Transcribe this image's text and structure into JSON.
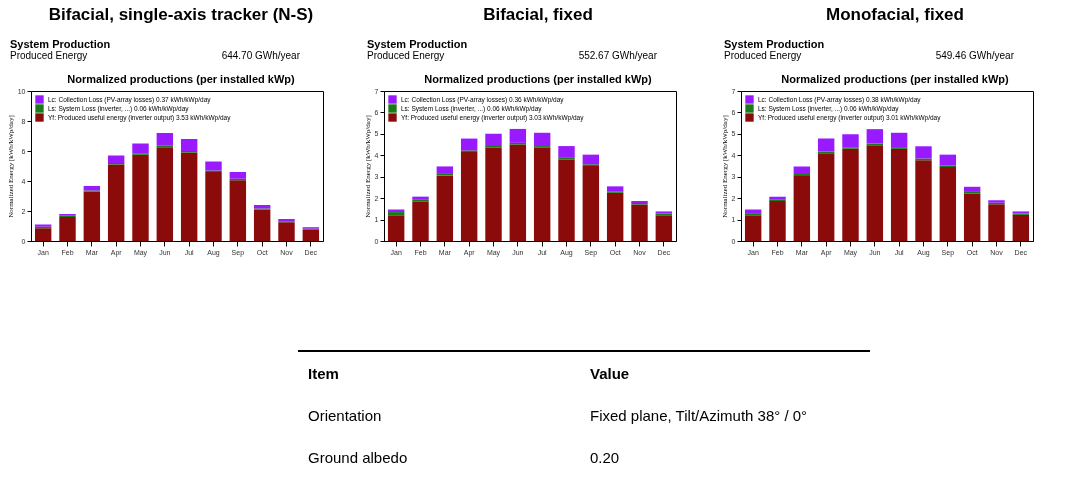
{
  "chart_data": [
    {
      "type": "bar",
      "title": "Bifacial, single-axis tracker (N-S)",
      "subtitle": "Normalized productions (per installed kWp)",
      "annotations": [
        "System Production",
        "Produced Energy",
        "644.70 GWh/year"
      ],
      "ylabel": "Normalized Energy [kWh/kWp/day]",
      "categories": [
        "Jan",
        "Feb",
        "Mar",
        "Apr",
        "May",
        "Jun",
        "Jul",
        "Aug",
        "Sep",
        "Oct",
        "Nov",
        "Dec"
      ],
      "stacked": true,
      "legend": "top left",
      "ylim": [
        0,
        10
      ],
      "yticks": [
        0,
        2,
        4,
        6,
        8,
        10
      ],
      "series": [
        {
          "name": "Yf: Produced useful energy  (inverter output)  3.53 kWh/kWp/day",
          "color": "#8b0a0a",
          "values": [
            0.85,
            1.6,
            3.3,
            5.1,
            5.75,
            6.25,
            5.9,
            4.6,
            4.05,
            2.1,
            1.25,
            0.75
          ]
        },
        {
          "name": "Ls: System Loss  (inverter, ...)  0.06 kWh/kWp/day",
          "color": "#1a7a1a",
          "values": [
            0.1,
            0.08,
            0.07,
            0.1,
            0.1,
            0.1,
            0.1,
            0.1,
            0.1,
            0.07,
            0.07,
            0.07
          ]
        },
        {
          "name": "Lc: Collection Loss (PV-array losses)  0.37 kWh/kWp/day",
          "color": "#9a1aff",
          "values": [
            0.15,
            0.12,
            0.3,
            0.5,
            0.65,
            0.85,
            0.8,
            0.6,
            0.45,
            0.23,
            0.15,
            0.1
          ]
        }
      ]
    },
    {
      "type": "bar",
      "title": "Bifacial, fixed",
      "subtitle": "Normalized productions (per installed kWp)",
      "annotations": [
        "System Production",
        "Produced Energy",
        "552.67 GWh/year"
      ],
      "ylabel": "Normalized Energy [kWh/kWp/day]",
      "categories": [
        "Jan",
        "Feb",
        "Mar",
        "Apr",
        "May",
        "Jun",
        "Jul",
        "Aug",
        "Sep",
        "Oct",
        "Nov",
        "Dec"
      ],
      "stacked": true,
      "legend": "top left",
      "ylim": [
        0,
        7
      ],
      "yticks": [
        0,
        1,
        2,
        3,
        4,
        5,
        6,
        7
      ],
      "series": [
        {
          "name": "Yf: Produced useful energy  (inverter output)  3.03 kWh/kWp/day",
          "color": "#8b0a0a",
          "values": [
            1.2,
            1.85,
            3.05,
            4.15,
            4.35,
            4.5,
            4.35,
            3.8,
            3.5,
            2.25,
            1.7,
            1.2
          ]
        },
        {
          "name": "Ls: System Loss  (inverter, ...)  0.06 kWh/kWp/day",
          "color": "#1a7a1a",
          "values": [
            0.15,
            0.1,
            0.08,
            0.08,
            0.08,
            0.08,
            0.08,
            0.08,
            0.08,
            0.07,
            0.07,
            0.08
          ]
        },
        {
          "name": "Lc: Collection Loss (PV-array losses)  0.36 kWh/kWp/day",
          "color": "#9a1aff",
          "values": [
            0.12,
            0.12,
            0.35,
            0.55,
            0.57,
            0.65,
            0.62,
            0.55,
            0.45,
            0.23,
            0.1,
            0.1
          ]
        }
      ]
    },
    {
      "type": "bar",
      "title": "Monofacial, fixed",
      "subtitle": "Normalized productions (per installed kWp)",
      "annotations": [
        "System Production",
        "Produced Energy",
        "549.46 GWh/year"
      ],
      "ylabel": "Normalized Energy [kWh/kWp/day]",
      "categories": [
        "Jan",
        "Feb",
        "Mar",
        "Apr",
        "May",
        "Jun",
        "Jul",
        "Aug",
        "Sep",
        "Oct",
        "Nov",
        "Dec"
      ],
      "stacked": true,
      "legend": "top left",
      "ylim": [
        0,
        7
      ],
      "yticks": [
        0,
        1,
        2,
        3,
        4,
        5,
        6,
        7
      ],
      "series": [
        {
          "name": "Yf: Produced useful energy  (inverter output)  3.01 kWh/kWp/day",
          "color": "#8b0a0a",
          "values": [
            1.2,
            1.87,
            3.03,
            4.1,
            4.3,
            4.47,
            4.3,
            3.77,
            3.45,
            2.22,
            1.72,
            1.22
          ]
        },
        {
          "name": "Ls: System Loss  (inverter, ...)  0.06 kWh/kWp/day",
          "color": "#1a7a1a",
          "values": [
            0.1,
            0.08,
            0.1,
            0.08,
            0.08,
            0.08,
            0.08,
            0.08,
            0.08,
            0.07,
            0.06,
            0.06
          ]
        },
        {
          "name": "Lc: Collection Loss (PV-array losses)  0.38 kWh/kWp/day",
          "color": "#9a1aff",
          "values": [
            0.17,
            0.12,
            0.35,
            0.6,
            0.6,
            0.67,
            0.67,
            0.57,
            0.5,
            0.24,
            0.12,
            0.1
          ]
        }
      ]
    },
    {
      "type": "other",
      "annotations": [
        "Item",
        "Value",
        "Orientation",
        "Fixed plane, Tilt/Azimuth 38° / 0°",
        "Ground albedo",
        "0.20"
      ]
    }
  ]
}
